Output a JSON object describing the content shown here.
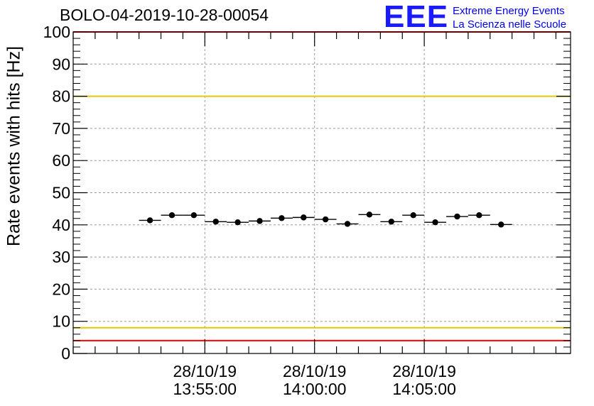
{
  "header": {
    "title": "BOLO-04-2019-10-28-00054"
  },
  "logo": {
    "letters": "EEE",
    "line1": "Extreme Energy Events",
    "line2": "La Scienza nelle Scuole",
    "color": "#0000ee"
  },
  "chart_data": {
    "type": "scatter",
    "title": "BOLO-04-2019-10-28-00054",
    "xlabel": "",
    "ylabel": "Rate events with hits [Hz]",
    "ylim": [
      0,
      100
    ],
    "x_range_seconds_of_day": [
      49740,
      51100
    ],
    "x_ticks": [
      {
        "time": "13:55:00",
        "date": "28/10/19"
      },
      {
        "time": "14:00:00",
        "date": "28/10/19"
      },
      {
        "time": "14:05:00",
        "date": "28/10/19"
      }
    ],
    "y_ticks": [
      0,
      10,
      20,
      30,
      40,
      50,
      60,
      70,
      80,
      90,
      100
    ],
    "grid": true,
    "bin_width_seconds": 60,
    "series": [
      {
        "x": [
          "13:52:30",
          "13:53:30",
          "13:54:30",
          "13:55:30",
          "13:56:30",
          "13:57:30",
          "13:58:30",
          "13:59:30",
          "14:00:30",
          "14:01:30",
          "14:02:30",
          "14:03:30",
          "14:04:30",
          "14:05:30",
          "14:06:30",
          "14:07:30",
          "14:08:30"
        ],
        "values": [
          41.4,
          43.0,
          43.0,
          41.0,
          40.8,
          41.2,
          42.1,
          42.3,
          41.7,
          40.3,
          43.2,
          41.0,
          43.0,
          40.8,
          42.6,
          43.0,
          40.1
        ]
      }
    ],
    "threshold_lines": [
      {
        "value": 100,
        "color": "#ff0000"
      },
      {
        "value": 80,
        "color": "#e6c700"
      },
      {
        "value": 8,
        "color": "#e6c700"
      },
      {
        "value": 4,
        "color": "#ff0000"
      }
    ]
  }
}
